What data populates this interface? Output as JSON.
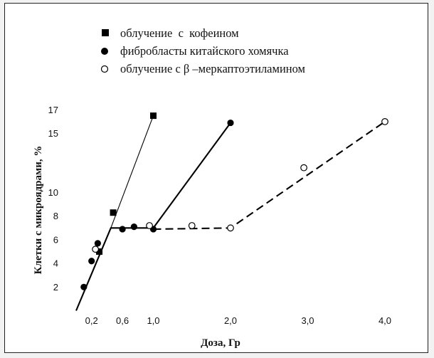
{
  "chart_data": {
    "type": "line",
    "xlabel": "Доза, Гр",
    "ylabel": "Клетки с микроядрами, %",
    "xlim": [
      0,
      4.2
    ],
    "ylim": [
      0,
      17.5
    ],
    "x_ticks": [
      {
        "value": 0.2,
        "label": "0,2"
      },
      {
        "value": 0.6,
        "label": "0,6"
      },
      {
        "value": 1.0,
        "label": "1,0"
      },
      {
        "value": 2.0,
        "label": "2,0"
      },
      {
        "value": 3.0,
        "label": "3,0"
      },
      {
        "value": 4.0,
        "label": "4,0"
      }
    ],
    "y_ticks": [
      {
        "value": 2,
        "label": "2"
      },
      {
        "value": 4,
        "label": "4"
      },
      {
        "value": 6,
        "label": "6"
      },
      {
        "value": 8,
        "label": "8"
      },
      {
        "value": 10,
        "label": "10"
      },
      {
        "value": 15,
        "label": "15"
      },
      {
        "value": 17,
        "label": "17"
      }
    ],
    "legend": [
      {
        "marker": "filled-square",
        "label": "облучение  с  кофеином"
      },
      {
        "marker": "filled-circle",
        "label": "фибробласты китайского хомячка"
      },
      {
        "marker": "open-circle",
        "label": "облучение с β –меркаптоэтиламином"
      }
    ],
    "series": [
      {
        "name": "облучение  с  кофеином",
        "marker": "filled-square",
        "points": [
          [
            0.3,
            5.0
          ],
          [
            0.48,
            8.3
          ],
          [
            1.0,
            16.5
          ]
        ]
      },
      {
        "name": "фибробласты китайского хомячка",
        "marker": "filled-circle",
        "points": [
          [
            0.1,
            2.0
          ],
          [
            0.2,
            4.2
          ],
          [
            0.28,
            5.7
          ],
          [
            0.6,
            6.9
          ],
          [
            0.75,
            7.1
          ],
          [
            1.0,
            6.9
          ],
          [
            2.0,
            15.9
          ]
        ]
      },
      {
        "name": "облучение с β –меркаптоэтиламином",
        "marker": "open-circle",
        "points": [
          [
            0.25,
            5.2
          ],
          [
            0.95,
            7.2
          ],
          [
            1.5,
            7.2
          ],
          [
            2.0,
            7.0
          ],
          [
            2.95,
            12.1
          ],
          [
            4.0,
            16.0
          ]
        ]
      }
    ],
    "fit_lines": [
      {
        "style": "solid",
        "width": "thin",
        "points": [
          [
            0.45,
            7.0
          ],
          [
            1.0,
            16.5
          ]
        ]
      },
      {
        "style": "solid",
        "width": "thick",
        "points": [
          [
            0.0,
            0.0
          ],
          [
            0.45,
            7.0
          ],
          [
            1.0,
            7.0
          ],
          [
            2.0,
            15.9
          ]
        ]
      },
      {
        "style": "dashed",
        "width": "thick",
        "points": [
          [
            1.0,
            6.9
          ],
          [
            2.0,
            7.0
          ],
          [
            4.0,
            16.0
          ]
        ]
      }
    ],
    "colors": {
      "line": "#000000",
      "background": "#ffffff"
    }
  }
}
